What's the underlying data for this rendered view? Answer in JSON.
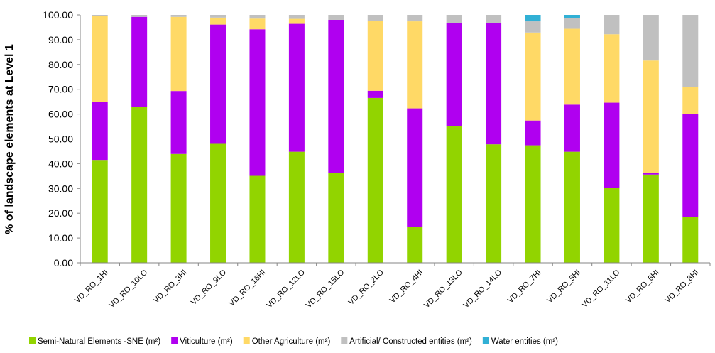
{
  "chart_data": {
    "type": "bar",
    "stacked": true,
    "ylabel": "% of landscape elements at Level 1",
    "xlabel": "",
    "ylim": [
      0,
      100
    ],
    "ytick_step": 10,
    "ytick_decimals": 2,
    "grid": false,
    "legend_position": "bottom",
    "categories": [
      "VD_RO_1HI",
      "VD_RO_10LO",
      "VD_RO_3HI",
      "VD_RO_9LO",
      "VD_RO_16HI",
      "VD_RO_12LO",
      "VD_RO_15LO",
      "VD_RO_2LO",
      "VD_RO_4HI",
      "VD_RO_13LO",
      "VD_RO_14LO",
      "VD_RO_7HI",
      "VD_RO_5HI",
      "VD_RO_11LO",
      "VD_RO_6HI",
      "VD_RO_8HI"
    ],
    "series": [
      {
        "name": "Semi-Natural Elements -SNE (m²)",
        "color": "#92d400",
        "values": [
          41.5,
          62.8,
          43.9,
          48.0,
          35.1,
          44.8,
          36.3,
          66.5,
          14.6,
          55.2,
          47.8,
          47.4,
          44.8,
          30.1,
          35.6,
          18.6
        ]
      },
      {
        "name": "Viticulture (m²)",
        "color": "#b000f0",
        "values": [
          23.4,
          36.4,
          25.4,
          48.1,
          59.1,
          51.6,
          61.7,
          2.9,
          47.7,
          41.6,
          49.0,
          10.0,
          19.0,
          34.5,
          0.6,
          41.3
        ]
      },
      {
        "name": "Other Agriculture (m²)",
        "color": "#ffd966",
        "values": [
          34.8,
          0.0,
          29.9,
          2.8,
          4.3,
          2.0,
          0.0,
          28.1,
          35.1,
          0.0,
          0.0,
          35.5,
          30.6,
          27.6,
          45.4,
          11.1
        ]
      },
      {
        "name": "Artificial/ Constructed entities (m²)",
        "color": "#c0c0c0",
        "values": [
          0.3,
          0.8,
          0.8,
          1.1,
          1.5,
          1.6,
          2.0,
          2.5,
          2.6,
          3.2,
          3.2,
          4.5,
          4.4,
          7.8,
          18.4,
          29.0
        ]
      },
      {
        "name": "Water entities (m²)",
        "color": "#31b0d5",
        "values": [
          0,
          0,
          0,
          0,
          0,
          0,
          0,
          0,
          0,
          0,
          0,
          2.6,
          1.2,
          0,
          0,
          0
        ]
      }
    ]
  }
}
